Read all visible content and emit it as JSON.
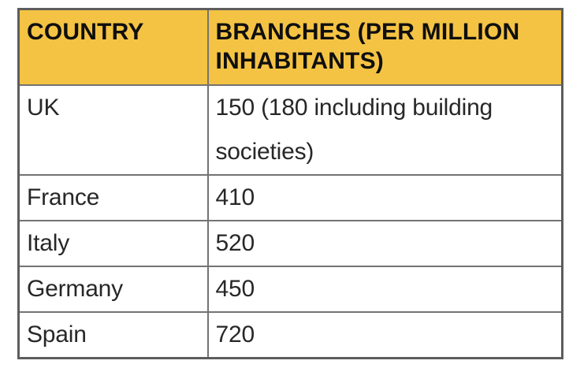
{
  "table": {
    "columns": [
      {
        "key": "country",
        "label": "COUNTRY"
      },
      {
        "key": "branches",
        "label": "BRANCHES (PER MILLION INHABITANTS)"
      }
    ],
    "rows": [
      {
        "country": "UK",
        "branches": "150 (180 including building societies)"
      },
      {
        "country": "France",
        "branches": "410"
      },
      {
        "country": "Italy",
        "branches": "520"
      },
      {
        "country": "Germany",
        "branches": "450"
      },
      {
        "country": "Spain",
        "branches": "720"
      }
    ],
    "colors": {
      "header_background": "#F5C343",
      "header_text": "#0F0F0F",
      "body_text": "#272727",
      "inner_border": "#737373",
      "outer_border": "#5D5D5D",
      "page_background": "#FFFFFF"
    }
  },
  "chart_data": {
    "type": "table",
    "columns": [
      "COUNTRY",
      "BRANCHES (PER MILLION INHABITANTS)"
    ],
    "rows": [
      [
        "UK",
        "150 (180 including building societies)"
      ],
      [
        "France",
        "410"
      ],
      [
        "Italy",
        "520"
      ],
      [
        "Germany",
        "450"
      ],
      [
        "Spain",
        "720"
      ]
    ],
    "numeric_values": {
      "UK": 150,
      "UK_including_building_societies": 180,
      "France": 410,
      "Italy": 520,
      "Germany": 450,
      "Spain": 720
    }
  }
}
